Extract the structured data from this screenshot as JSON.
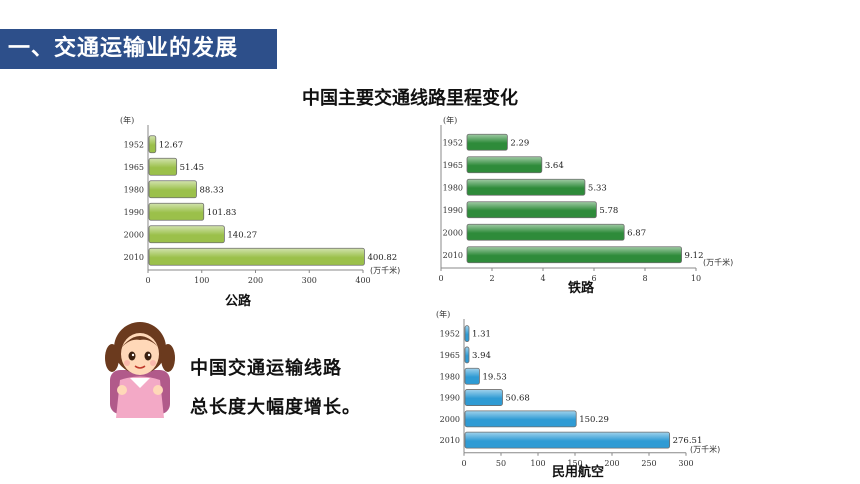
{
  "header": {
    "title": "一、交通运输业的发展"
  },
  "main_title": "中国主要交通线路里程变化",
  "speech": {
    "line1": "中国交通运输线路",
    "line2": "总长度大幅度增长。"
  },
  "colors": {
    "header_bg": "#2d4f8a",
    "highway": "#9bc04a",
    "railway": "#2e8b3a",
    "aviation": "#2f9bd4"
  },
  "chart_data": [
    {
      "type": "bar",
      "orientation": "horizontal",
      "caption": "公路",
      "year_label": "(年)",
      "unit_label": "(万千米)",
      "categories": [
        "1952",
        "1965",
        "1980",
        "1990",
        "2000",
        "2010"
      ],
      "values": [
        12.67,
        51.45,
        88.33,
        101.83,
        140.27,
        400.82
      ],
      "value_labels": [
        "12.67",
        "51.45",
        "88.33",
        "101.83",
        "140.27",
        "400.82"
      ],
      "xlim": [
        0,
        400
      ],
      "xticks": [
        "0",
        "100",
        "200",
        "300",
        "400"
      ],
      "color": "#9bc04a",
      "grid": false
    },
    {
      "type": "bar",
      "orientation": "horizontal",
      "caption": "铁路",
      "year_label": "(年)",
      "unit_label": "(万千米)",
      "categories": [
        "1952",
        "1965",
        "1980",
        "1990",
        "2000",
        "2010"
      ],
      "values": [
        2.29,
        3.64,
        5.33,
        5.78,
        6.87,
        9.12
      ],
      "value_labels": [
        "2.29",
        "3.64",
        "5.33",
        "5.78",
        "6.87",
        "9.12"
      ],
      "xlim": [
        0,
        10
      ],
      "xticks": [
        "0",
        "2",
        "4",
        "6",
        "8",
        "10"
      ],
      "color": "#2e8b3a",
      "grid": false
    },
    {
      "type": "bar",
      "orientation": "horizontal",
      "caption": "民用航空",
      "year_label": "(年)",
      "unit_label": "(万千米)",
      "categories": [
        "1952",
        "1965",
        "1980",
        "1990",
        "2000",
        "2010"
      ],
      "values": [
        1.31,
        3.94,
        19.53,
        50.68,
        150.29,
        276.51
      ],
      "value_labels": [
        "1.31",
        "3.94",
        "19.53",
        "50.68",
        "150.29",
        "276.51"
      ],
      "xlim": [
        0,
        300
      ],
      "xticks": [
        "0",
        "50",
        "100",
        "150",
        "200",
        "250",
        "300"
      ],
      "color": "#2f9bd4",
      "grid": false
    }
  ]
}
